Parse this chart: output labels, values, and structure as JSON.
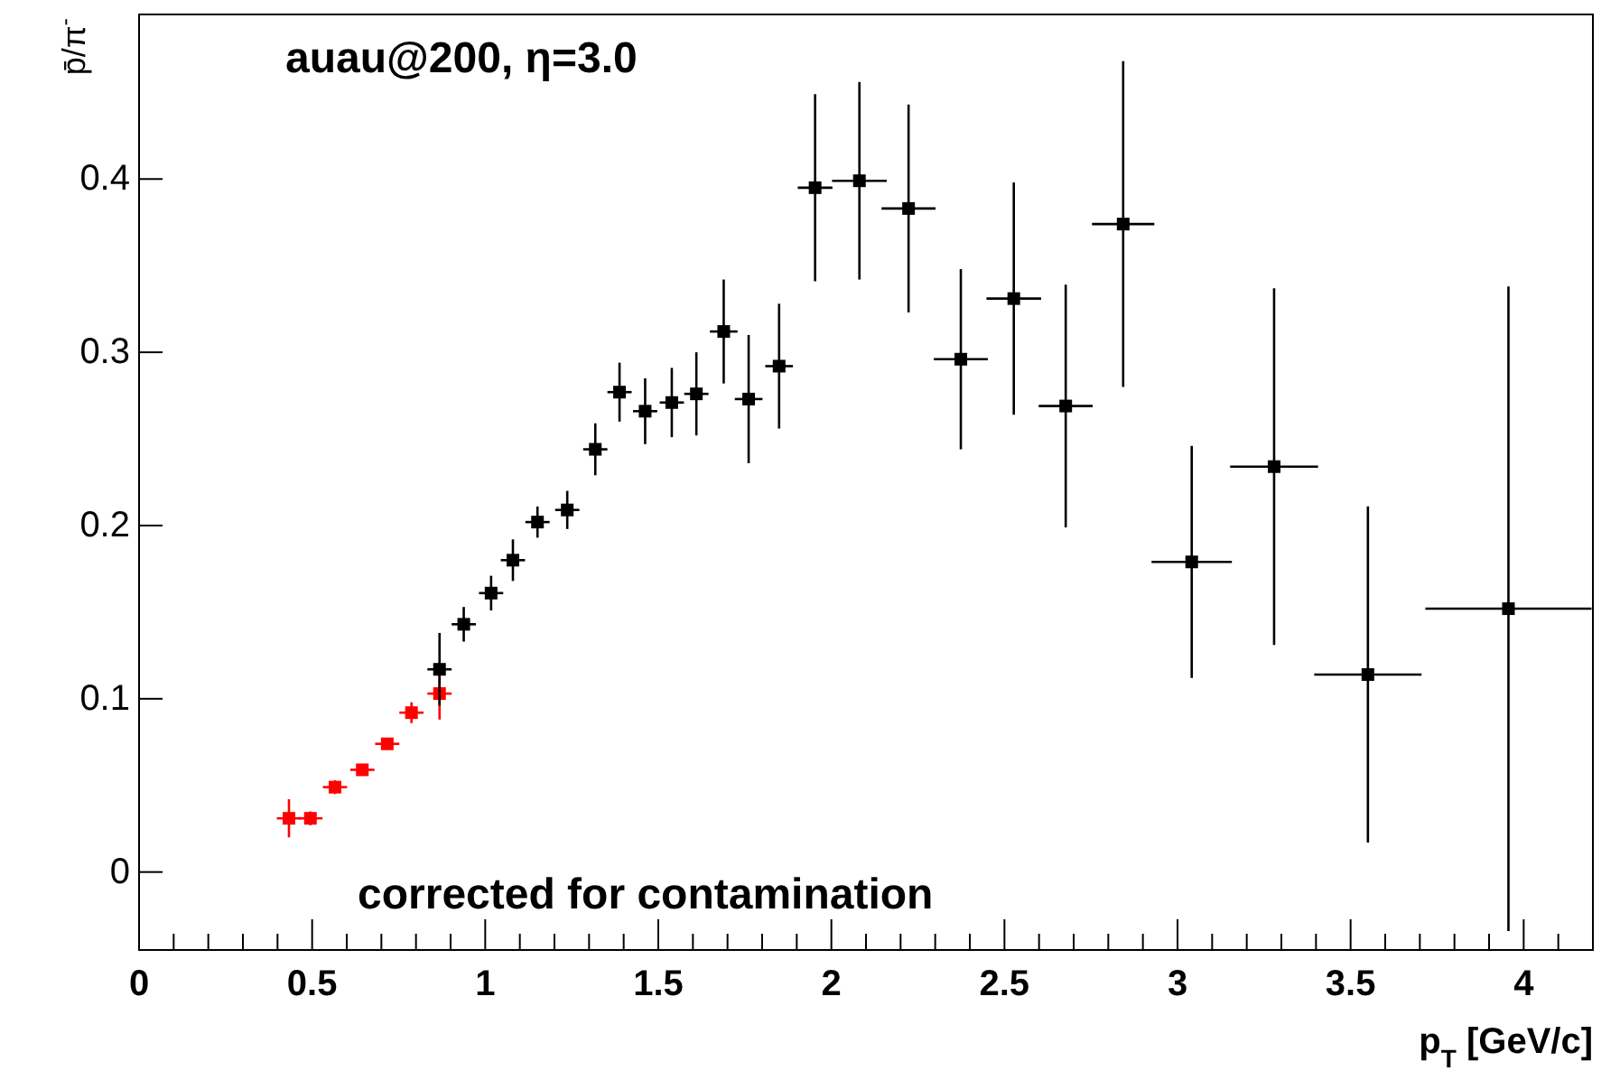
{
  "chart_data": {
    "type": "scatter",
    "title": "auau@200, η=3.0",
    "xlabel": "p$_{T}$ [GeV/c]",
    "ylabel": "p̄/π$^{-}$",
    "annotations": [
      "corrected for contamination"
    ],
    "marker": "square",
    "grid": false,
    "xlim": [
      0,
      4.2
    ],
    "ylim": [
      -0.045,
      0.495
    ],
    "xticks": [
      0,
      0.5,
      1,
      1.5,
      2,
      2.5,
      3,
      3.5,
      4
    ],
    "yticks": [
      0,
      0.1,
      0.2,
      0.3,
      0.4
    ],
    "series": [
      {
        "color": "#ff0000",
        "x": [
          0.433,
          0.495,
          0.566,
          0.645,
          0.717,
          0.787,
          0.868
        ],
        "values": [
          0.031,
          0.031,
          0.049,
          0.059,
          0.074,
          0.092,
          0.103
        ],
        "errors": [
          0.011,
          0.004,
          0.004,
          0.003,
          0.003,
          0.006,
          0.015
        ],
        "xerrors": [
          0.035,
          0.035,
          0.035,
          0.035,
          0.035,
          0.035,
          0.035
        ]
      },
      {
        "color": "#000000",
        "x": [
          0.868,
          0.938,
          1.017,
          1.08,
          1.151,
          1.237,
          1.318,
          1.388,
          1.462,
          1.539,
          1.61,
          1.689,
          1.761,
          1.849,
          1.953,
          2.081,
          2.223,
          2.374,
          2.527,
          2.677,
          2.843,
          3.041,
          3.279,
          3.55,
          3.956
        ],
        "values": [
          0.117,
          0.143,
          0.161,
          0.18,
          0.202,
          0.209,
          0.244,
          0.277,
          0.266,
          0.271,
          0.276,
          0.312,
          0.273,
          0.292,
          0.395,
          0.399,
          0.383,
          0.296,
          0.331,
          0.269,
          0.374,
          0.179,
          0.234,
          0.114,
          0.152
        ],
        "errors": [
          0.021,
          0.01,
          0.01,
          0.012,
          0.009,
          0.011,
          0.015,
          0.017,
          0.019,
          0.02,
          0.024,
          0.03,
          0.037,
          0.036,
          0.054,
          0.057,
          0.06,
          0.052,
          0.067,
          0.07,
          0.094,
          0.067,
          0.103,
          0.097,
          0.186
        ],
        "xerrors": [
          0.035,
          0.035,
          0.035,
          0.035,
          0.035,
          0.035,
          0.035,
          0.035,
          0.035,
          0.035,
          0.035,
          0.04,
          0.04,
          0.04,
          0.05,
          0.079,
          0.078,
          0.078,
          0.079,
          0.078,
          0.09,
          0.116,
          0.127,
          0.155,
          0.24
        ]
      }
    ]
  }
}
